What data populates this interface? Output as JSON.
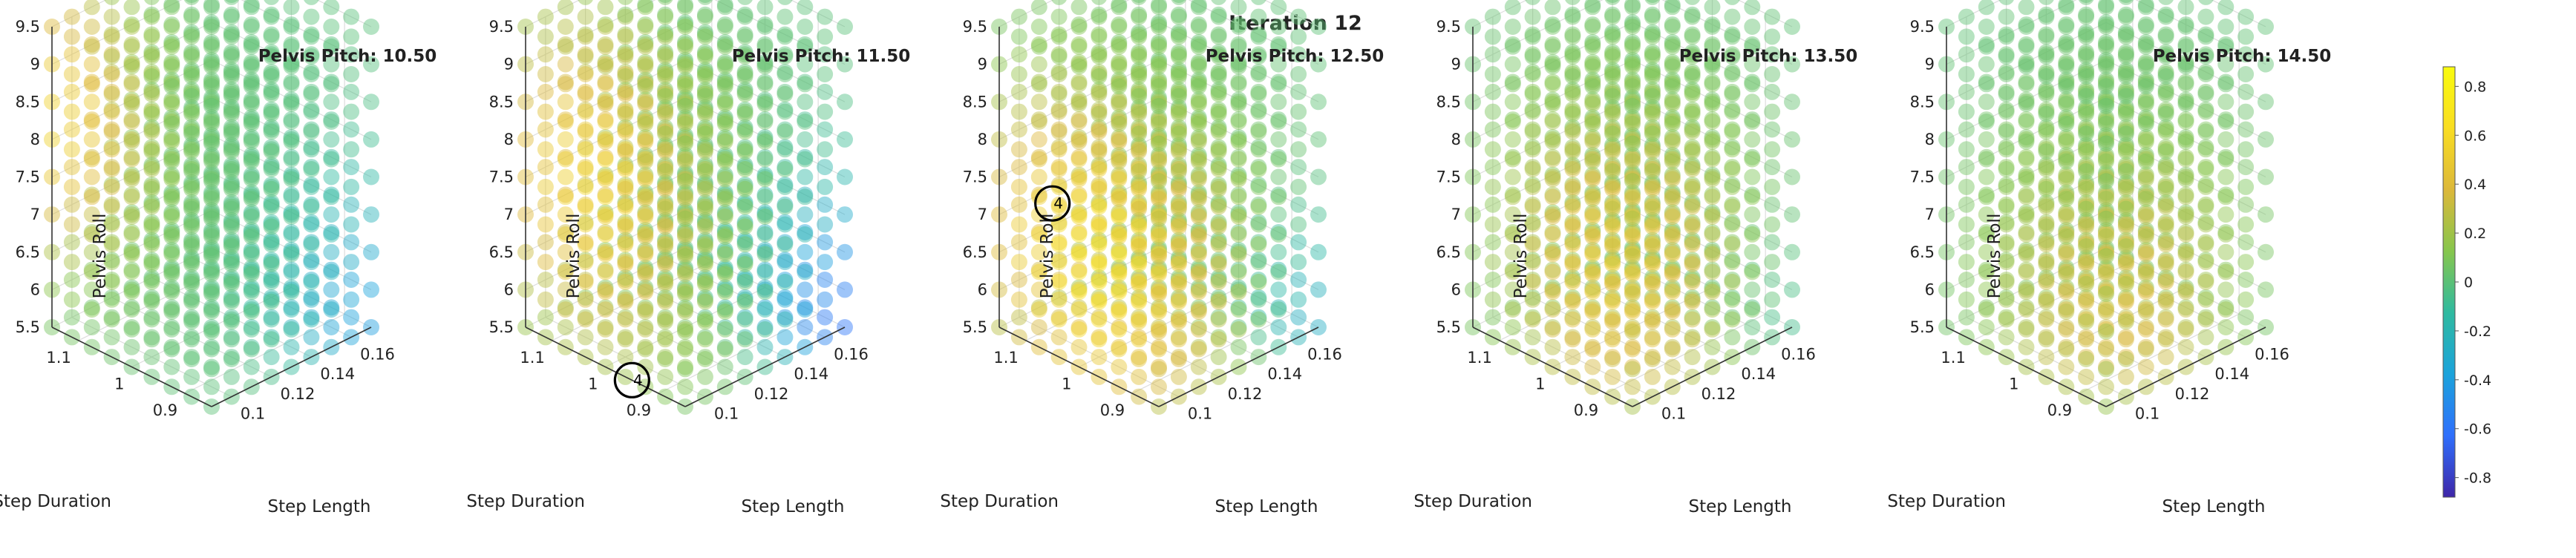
{
  "figure": {
    "title": "Iteration 12"
  },
  "colors": {
    "colormap": [
      "#3e26a8",
      "#2f6ffc",
      "#1ba3db",
      "#2fbaa0",
      "#86c64d",
      "#dcb83a",
      "#f9dd22",
      "#f9fb0e"
    ],
    "marker_default": "#26c3bf",
    "axis": "#333333",
    "grid": "#dddddd",
    "marker_ring": "#000000"
  },
  "chart_data": [
    {
      "type": "scatter3d",
      "title": "Pelvis Pitch: 10.50",
      "xlabel": "Step Length",
      "ylabel": "Step Duration",
      "zlabel": "Pelvis Roll",
      "x_ticks": [
        "0.1",
        "0.12",
        "0.14",
        "0.16"
      ],
      "y_ticks": [
        "0.9",
        "1",
        "1.1"
      ],
      "z_ticks": [
        "5.5",
        "6",
        "6.5",
        "7",
        "7.5",
        "8",
        "8.5",
        "9",
        "9.5"
      ],
      "xlim": [
        0.09,
        0.17
      ],
      "ylim": [
        0.85,
        1.15
      ],
      "zlim": [
        5.5,
        9.5
      ],
      "grid_points": [
        9,
        9,
        9
      ],
      "field": {
        "base": 0.0,
        "peak": 0.55,
        "peak_at": [
          0.09,
          1.15,
          8.3
        ],
        "sigma": [
          0.025,
          0.12,
          1.4
        ],
        "low": -0.4,
        "low_at": [
          0.17,
          0.85,
          5.5
        ],
        "low_sigma": [
          0.025,
          0.12,
          1.4
        ]
      },
      "marker": null
    },
    {
      "type": "scatter3d",
      "title": "Pelvis Pitch: 11.50",
      "xlabel": "Step Length",
      "ylabel": "Step Duration",
      "zlabel": "Pelvis Roll",
      "x_ticks": [
        "0.1",
        "0.12",
        "0.14",
        "0.16"
      ],
      "y_ticks": [
        "0.9",
        "1",
        "1.1"
      ],
      "z_ticks": [
        "5.5",
        "6",
        "6.5",
        "7",
        "7.5",
        "8",
        "8.5",
        "9",
        "9.5"
      ],
      "xlim": [
        0.09,
        0.17
      ],
      "ylim": [
        0.85,
        1.15
      ],
      "zlim": [
        5.5,
        9.5
      ],
      "grid_points": [
        9,
        9,
        9
      ],
      "field": {
        "base": 0.0,
        "peak": 0.6,
        "peak_at": [
          0.1,
          1.05,
          7.6
        ],
        "sigma": [
          0.025,
          0.13,
          1.6
        ],
        "low": -0.6,
        "low_at": [
          0.17,
          0.85,
          5.5
        ],
        "low_sigma": [
          0.022,
          0.12,
          1.3
        ]
      },
      "marker": {
        "label": "4",
        "at": [
          0.09,
          0.95,
          5.5
        ]
      }
    },
    {
      "type": "scatter3d",
      "title": "Pelvis Pitch: 12.50",
      "xlabel": "Step Length",
      "ylabel": "Step Duration",
      "zlabel": "Pelvis Roll",
      "x_ticks": [
        "0.1",
        "0.12",
        "0.14",
        "0.16"
      ],
      "y_ticks": [
        "0.9",
        "1",
        "1.1"
      ],
      "z_ticks": [
        "5.5",
        "6",
        "6.5",
        "7",
        "7.5",
        "8",
        "8.5",
        "9",
        "9.5"
      ],
      "xlim": [
        0.09,
        0.17
      ],
      "ylim": [
        0.85,
        1.15
      ],
      "zlim": [
        5.5,
        9.5
      ],
      "grid_points": [
        9,
        9,
        9
      ],
      "field": {
        "base": 0.0,
        "peak": 0.7,
        "peak_at": [
          0.1,
          1.0,
          6.8
        ],
        "sigma": [
          0.03,
          0.15,
          1.5
        ],
        "low": -0.3,
        "low_at": [
          0.17,
          0.85,
          5.5
        ],
        "low_sigma": [
          0.018,
          0.1,
          1.0
        ]
      },
      "marker": {
        "label": "4",
        "at": [
          0.09,
          1.05,
          7.5
        ]
      }
    },
    {
      "type": "scatter3d",
      "title": "Pelvis Pitch: 13.50",
      "xlabel": "Step Length",
      "ylabel": "Step Duration",
      "zlabel": "Pelvis Roll",
      "x_ticks": [
        "0.1",
        "0.12",
        "0.14",
        "0.16"
      ],
      "y_ticks": [
        "0.9",
        "1",
        "1.1"
      ],
      "z_ticks": [
        "5.5",
        "6",
        "6.5",
        "7",
        "7.5",
        "8",
        "8.5",
        "9",
        "9.5"
      ],
      "xlim": [
        0.09,
        0.17
      ],
      "ylim": [
        0.85,
        1.15
      ],
      "zlim": [
        5.5,
        9.5
      ],
      "grid_points": [
        9,
        9,
        9
      ],
      "field": {
        "base": 0.0,
        "peak": 0.55,
        "peak_at": [
          0.11,
          0.95,
          6.8
        ],
        "sigma": [
          0.03,
          0.12,
          1.5
        ],
        "low": -0.1,
        "low_at": [
          0.17,
          0.85,
          5.5
        ],
        "low_sigma": [
          0.02,
          0.1,
          1.0
        ]
      },
      "marker": null
    },
    {
      "type": "scatter3d",
      "title": "Pelvis Pitch: 14.50",
      "xlabel": "Step Length",
      "ylabel": "Step Duration",
      "zlabel": "Pelvis Roll",
      "x_ticks": [
        "0.1",
        "0.12",
        "0.14",
        "0.16"
      ],
      "y_ticks": [
        "0.9",
        "1",
        "1.1"
      ],
      "z_ticks": [
        "5.5",
        "6",
        "6.5",
        "7",
        "7.5",
        "8",
        "8.5",
        "9",
        "9.5"
      ],
      "xlim": [
        0.09,
        0.17
      ],
      "ylim": [
        0.85,
        1.15
      ],
      "zlim": [
        5.5,
        9.5
      ],
      "grid_points": [
        9,
        9,
        9
      ],
      "field": {
        "base": 0.0,
        "peak": 0.45,
        "peak_at": [
          0.12,
          0.95,
          6.3
        ],
        "sigma": [
          0.03,
          0.12,
          1.5
        ],
        "low": 0.0,
        "low_at": [
          0.17,
          0.85,
          5.5
        ],
        "low_sigma": [
          0.02,
          0.1,
          1.0
        ]
      },
      "marker": null
    }
  ],
  "colorbar": {
    "ticks": [
      "0.8",
      "0.6",
      "0.4",
      "0.2",
      "0",
      "-0.2",
      "-0.4",
      "-0.6",
      "-0.8"
    ],
    "range": [
      -0.88,
      0.88
    ]
  }
}
